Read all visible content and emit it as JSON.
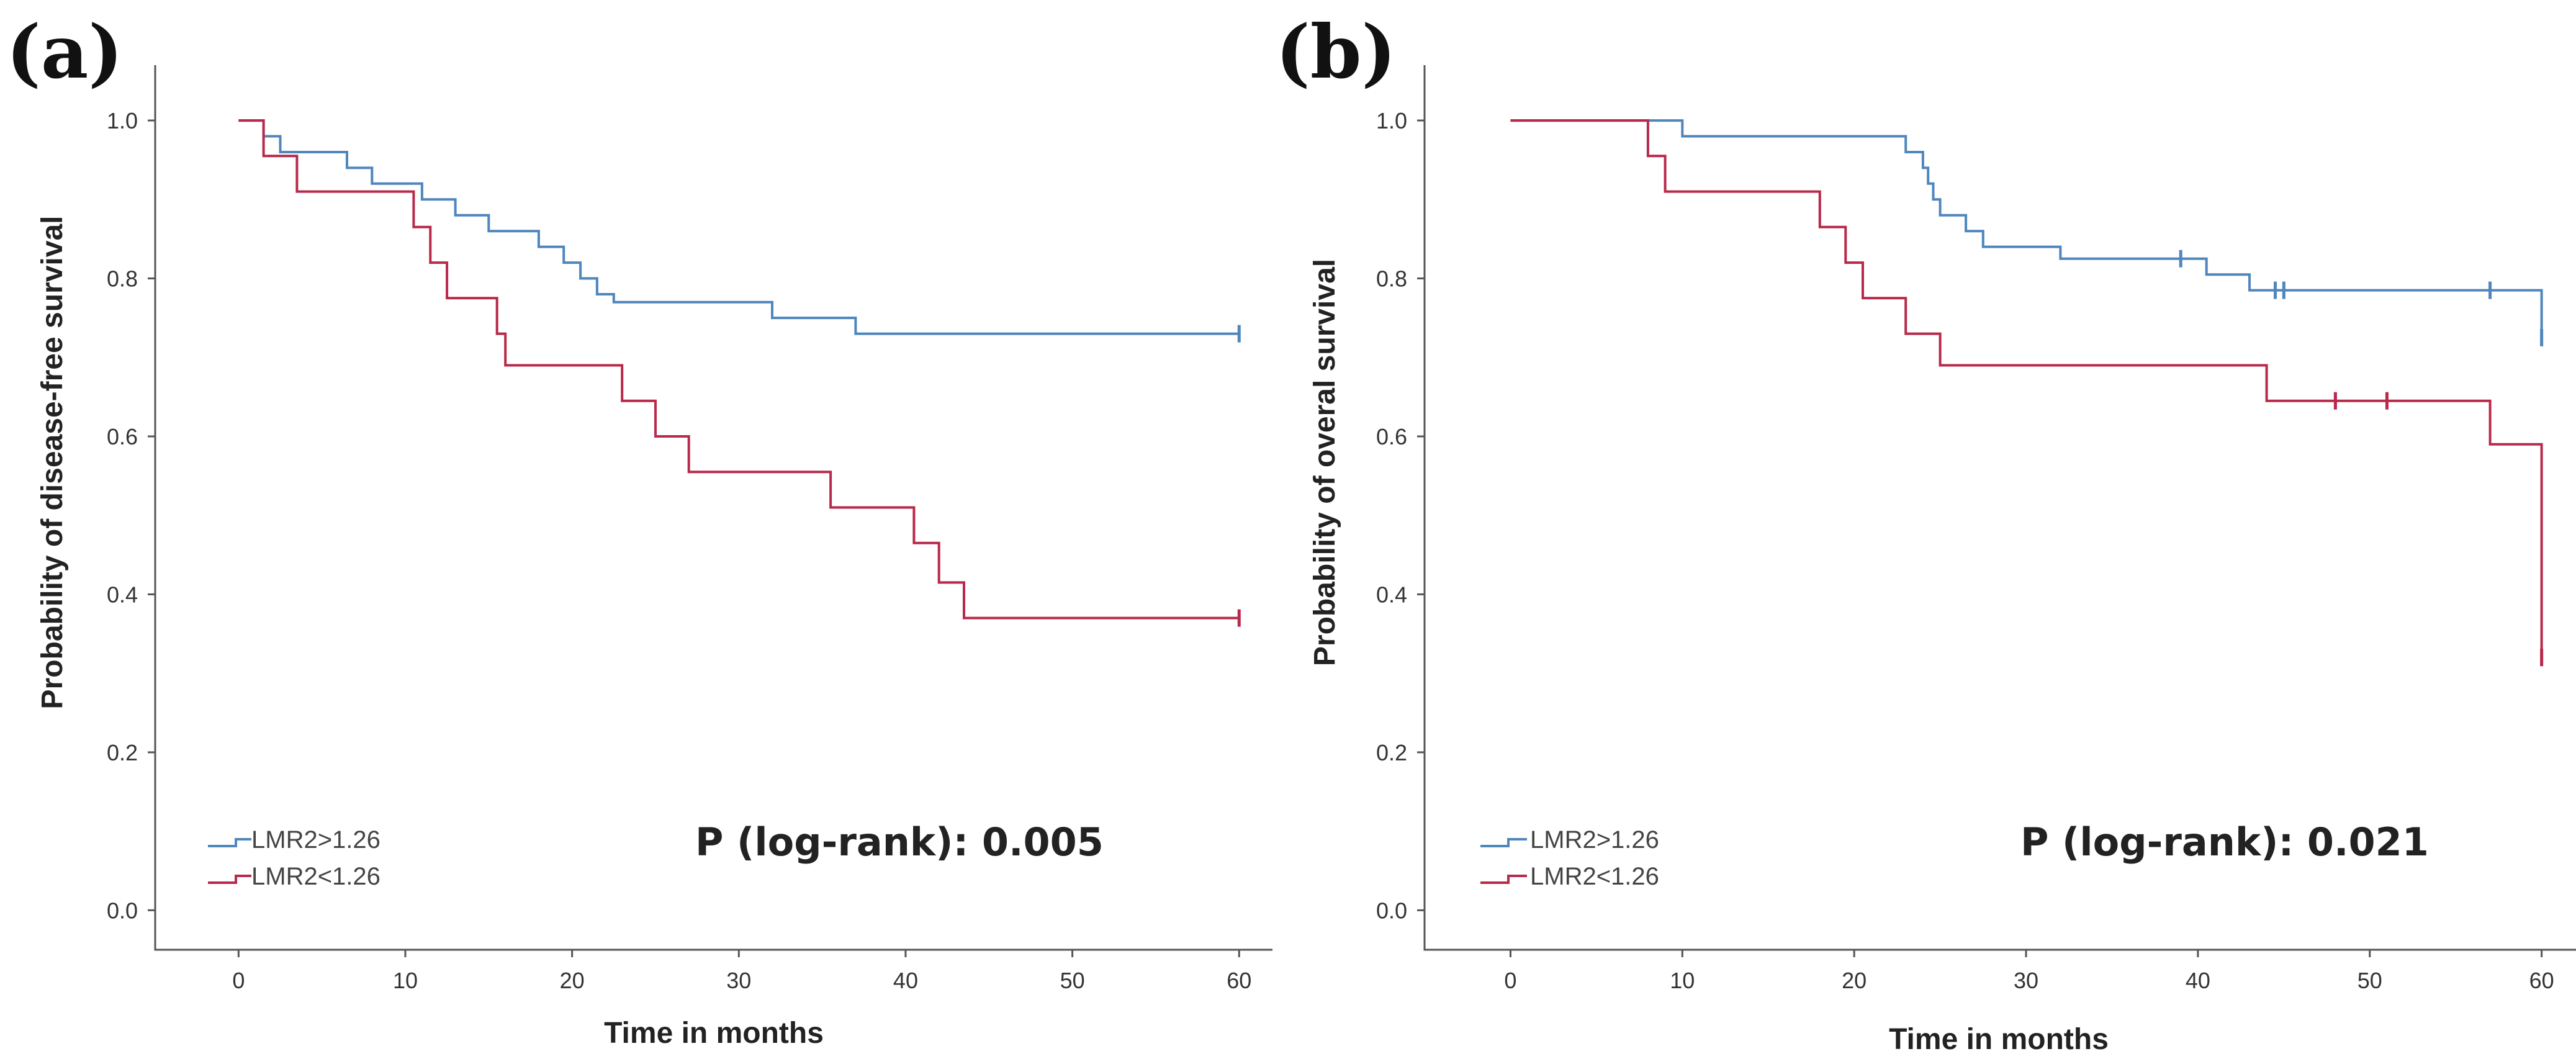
{
  "chart_data": [
    {
      "type": "line",
      "style": "step",
      "panel_label": "(a)",
      "xlabel": "Time in months",
      "ylabel": "Probability of disease-free survival",
      "x_ticks": [
        "0",
        "10",
        "20",
        "30",
        "40",
        "50",
        "60"
      ],
      "y_ticks": [
        "0.0",
        "0.2",
        "0.4",
        "0.6",
        "0.8",
        "1.0"
      ],
      "xlim": [
        -5,
        62
      ],
      "ylim": [
        -0.05,
        1.07
      ],
      "annotation": "P (log-rank): 0.005",
      "series": [
        {
          "name": "LMR2>1.26",
          "color": "#4f86bc",
          "points": [
            [
              0,
              1.0
            ],
            [
              1.5,
              0.98
            ],
            [
              2.5,
              0.96
            ],
            [
              6.5,
              0.94
            ],
            [
              8,
              0.92
            ],
            [
              11,
              0.9
            ],
            [
              13,
              0.88
            ],
            [
              15,
              0.86
            ],
            [
              18,
              0.84
            ],
            [
              19.5,
              0.82
            ],
            [
              20.5,
              0.8
            ],
            [
              21.5,
              0.78
            ],
            [
              22.5,
              0.77
            ],
            [
              32,
              0.75
            ],
            [
              37,
              0.73
            ],
            [
              60,
              0.73
            ]
          ],
          "censored": [
            60
          ]
        },
        {
          "name": "LMR2<1.26",
          "color": "#b8294a",
          "points": [
            [
              0,
              1.0
            ],
            [
              1.5,
              0.955
            ],
            [
              3.5,
              0.91
            ],
            [
              10.5,
              0.865
            ],
            [
              11.5,
              0.82
            ],
            [
              12.5,
              0.775
            ],
            [
              15.5,
              0.73
            ],
            [
              16,
              0.69
            ],
            [
              23,
              0.645
            ],
            [
              25,
              0.6
            ],
            [
              27,
              0.555
            ],
            [
              35.5,
              0.51
            ],
            [
              40.5,
              0.465
            ],
            [
              42,
              0.415
            ],
            [
              43.5,
              0.37
            ],
            [
              60,
              0.37
            ]
          ],
          "censored": [
            60
          ]
        }
      ]
    },
    {
      "type": "line",
      "style": "step",
      "panel_label": "(b)",
      "xlabel": "Time in months",
      "ylabel": "Probability of overal survival",
      "x_ticks": [
        "0",
        "10",
        "20",
        "30",
        "40",
        "50",
        "60"
      ],
      "y_ticks": [
        "0.0",
        "0.2",
        "0.4",
        "0.6",
        "0.8",
        "1.0"
      ],
      "xlim": [
        -5,
        62
      ],
      "ylim": [
        -0.05,
        1.07
      ],
      "annotation": "P (log-rank): 0.021",
      "series": [
        {
          "name": "LMR2>1.26",
          "color": "#4f86bc",
          "points": [
            [
              0,
              1.0
            ],
            [
              10,
              0.98
            ],
            [
              23,
              0.96
            ],
            [
              24,
              0.94
            ],
            [
              24.3,
              0.92
            ],
            [
              24.6,
              0.9
            ],
            [
              25,
              0.88
            ],
            [
              26.5,
              0.86
            ],
            [
              27.5,
              0.84
            ],
            [
              32,
              0.825
            ],
            [
              40.5,
              0.805
            ],
            [
              43,
              0.785
            ],
            [
              60,
              0.725
            ]
          ],
          "censored": [
            39,
            44.5,
            45,
            57,
            60
          ]
        },
        {
          "name": "LMR2<1.26",
          "color": "#b8294a",
          "points": [
            [
              0,
              1.0
            ],
            [
              8,
              0.955
            ],
            [
              9,
              0.91
            ],
            [
              18,
              0.865
            ],
            [
              19.5,
              0.82
            ],
            [
              20.5,
              0.775
            ],
            [
              23,
              0.73
            ],
            [
              25,
              0.69
            ],
            [
              44,
              0.645
            ],
            [
              57,
              0.59
            ],
            [
              60,
              0.32
            ]
          ],
          "censored": [
            48,
            51,
            60
          ]
        }
      ]
    }
  ]
}
